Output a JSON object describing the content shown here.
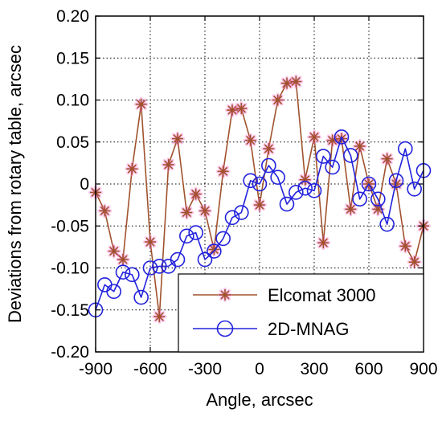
{
  "chart_data": {
    "type": "line",
    "xlabel": "Angle, arcsec",
    "ylabel": "Deviations from rotary table, arcsec",
    "xlim": [
      -900,
      900
    ],
    "ylim": [
      -0.2,
      0.2
    ],
    "xticks": [
      -900,
      -600,
      -300,
      0,
      300,
      600,
      900
    ],
    "xtick_labels": [
      "-900",
      "-600",
      "-300",
      "0",
      "300",
      "600",
      "900"
    ],
    "yticks": [
      0.2,
      0.15,
      0.1,
      0.05,
      0,
      -0.05,
      -0.1,
      -0.15,
      -0.2
    ],
    "ytick_labels": [
      "0.20",
      "0.15",
      "0.10",
      "0.05",
      "0",
      "-0.05",
      "-0.10",
      "-0.15",
      "-0.20"
    ],
    "grid": true,
    "legend_position": "bottom-right",
    "series": [
      {
        "name": "Elcomat 3000",
        "color": "#a0522d",
        "marker": "asterisk",
        "x": [
          -900,
          -850,
          -800,
          -750,
          -700,
          -650,
          -600,
          -550,
          -500,
          -450,
          -400,
          -350,
          -300,
          -250,
          -200,
          -150,
          -100,
          -50,
          0,
          50,
          100,
          150,
          200,
          250,
          300,
          350,
          400,
          450,
          500,
          550,
          600,
          650,
          700,
          750,
          800,
          850,
          900
        ],
        "y": [
          -0.01,
          -0.032,
          -0.08,
          -0.09,
          0.018,
          0.095,
          -0.069,
          -0.158,
          0.023,
          0.054,
          -0.034,
          -0.012,
          -0.032,
          -0.078,
          0.015,
          0.088,
          0.09,
          0.052,
          -0.025,
          0.042,
          0.1,
          0.12,
          0.122,
          0.005,
          0.056,
          -0.07,
          0.052,
          0.054,
          -0.03,
          0.045,
          0.0,
          -0.03,
          0.03,
          0.0,
          -0.074,
          -0.093,
          -0.05
        ]
      },
      {
        "name": "2D-MNAG",
        "color": "#2222dd",
        "marker": "circle",
        "x": [
          -900,
          -850,
          -800,
          -750,
          -700,
          -650,
          -600,
          -550,
          -500,
          -450,
          -400,
          -350,
          -300,
          -250,
          -200,
          -150,
          -100,
          -50,
          0,
          50,
          100,
          150,
          200,
          250,
          300,
          350,
          400,
          450,
          500,
          550,
          600,
          650,
          700,
          750,
          800,
          850,
          900
        ],
        "y": [
          -0.15,
          -0.12,
          -0.128,
          -0.105,
          -0.108,
          -0.135,
          -0.1,
          -0.098,
          -0.098,
          -0.09,
          -0.062,
          -0.058,
          -0.09,
          -0.08,
          -0.065,
          -0.04,
          -0.034,
          0.004,
          0.0,
          0.022,
          0.008,
          -0.024,
          -0.01,
          -0.005,
          -0.008,
          0.033,
          0.02,
          0.056,
          0.034,
          -0.018,
          0.0,
          -0.018,
          -0.048,
          0.004,
          0.042,
          -0.006,
          0.016
        ]
      }
    ]
  }
}
